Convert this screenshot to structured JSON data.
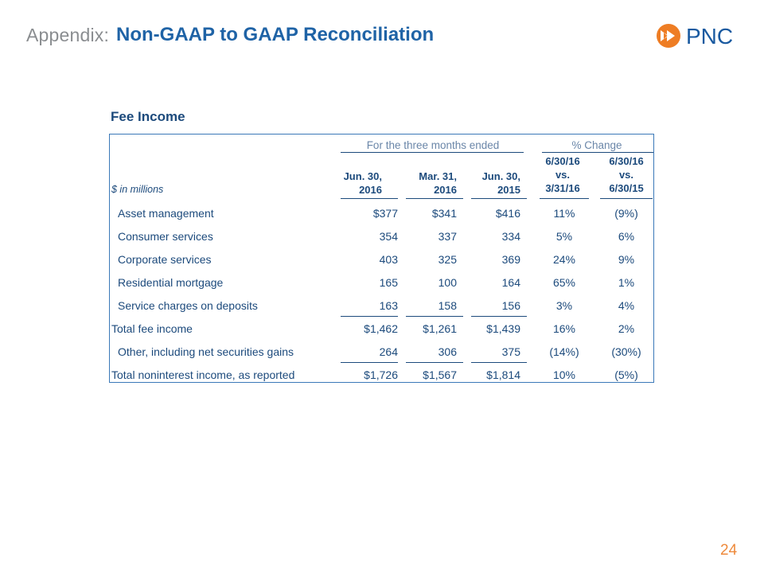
{
  "header": {
    "prefix": "Appendix:",
    "title": "Non-GAAP to GAAP Reconciliation"
  },
  "logo": {
    "text": "PNC",
    "icon": "pnc-logo-icon",
    "color": "#ee7d24"
  },
  "section_title": "Fee Income",
  "table": {
    "group_headers": {
      "period": "For the three months ended",
      "change": "% Change"
    },
    "units_label": "$ in millions",
    "columns": [
      "Jun. 30,\n2016",
      "Mar. 31,\n2016",
      "Jun. 30,\n2015",
      "6/30/16\nvs.\n3/31/16",
      "6/30/16\nvs.\n6/30/15"
    ],
    "rows": [
      {
        "label": "Asset management",
        "values": [
          "$377",
          "$341",
          "$416",
          "11%",
          "(9%)"
        ]
      },
      {
        "label": "Consumer services",
        "values": [
          "354",
          "337",
          "334",
          "5%",
          "6%"
        ]
      },
      {
        "label": "Corporate services",
        "values": [
          "403",
          "325",
          "369",
          "24%",
          "9%"
        ]
      },
      {
        "label": "Residential mortgage",
        "values": [
          "165",
          "100",
          "164",
          "65%",
          "1%"
        ]
      },
      {
        "label": "Service charges on deposits",
        "values": [
          "163",
          "158",
          "156",
          "3%",
          "4%"
        ]
      },
      {
        "label": "Total fee income",
        "values": [
          "$1,462",
          "$1,261",
          "$1,439",
          "16%",
          "2%"
        ]
      },
      {
        "label": "Other, including net securities gains",
        "values": [
          "264",
          "306",
          "375",
          "(14%)",
          "(30%)"
        ]
      },
      {
        "label": "Total noninterest income, as reported",
        "values": [
          "$1,726",
          "$1,567",
          "$1,814",
          "10%",
          "(5%)"
        ]
      }
    ]
  },
  "page_number": "24"
}
